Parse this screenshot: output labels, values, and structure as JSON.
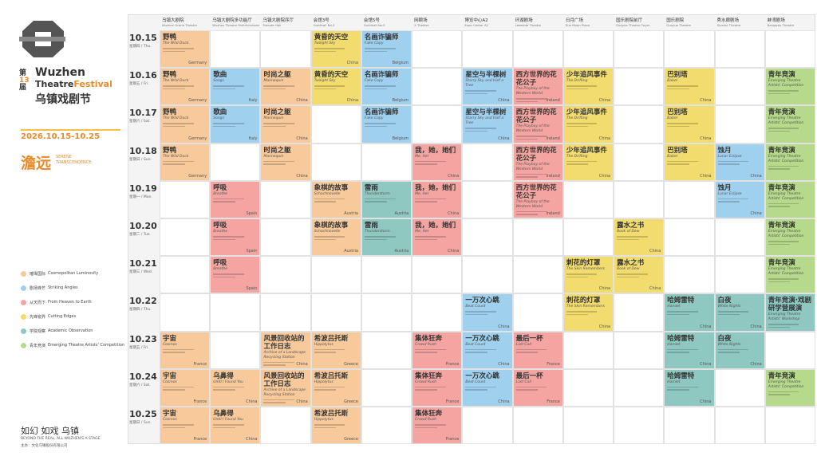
{
  "header": {
    "edition_prefix": "第",
    "edition": "13",
    "edition_suffix": "届",
    "name_en_1": "Wuzhen",
    "name_en_2": "Theatre",
    "name_en_3": "Festival",
    "name_zh": "乌镇戏剧节",
    "dates": "2026.10.15-10.25",
    "theme_zh": "澹远",
    "theme_en_1": "SERENE",
    "theme_en_2": "TRANSCENDENCE"
  },
  "legend": [
    {
      "name": "璀璨国际",
      "english": "Cosmopolitan Luminosity",
      "color": "#f7c99b"
    },
    {
      "name": "剧场锋芒",
      "english": "Striking Angles",
      "color": "#9fd0ee"
    },
    {
      "name": "从天而下",
      "english": "From Heaven to Earth",
      "color": "#f4a5a1"
    },
    {
      "name": "先锋锐界",
      "english": "Cutting Edges",
      "color": "#f2dc6e"
    },
    {
      "name": "学院观察",
      "english": "Academic Observation",
      "color": "#8fc8c1"
    },
    {
      "name": "青年竞演",
      "english": "Emerging Theatre Artists' Competition",
      "color": "#b6d98c"
    }
  ],
  "footer": {
    "slogan": "如幻 如戏 乌镇",
    "slogan_en": "BEYOND THE REAL, ALL WUZHEN'S A STAGE",
    "organizer": "主办：文化乌镇股份有限公司"
  },
  "venues": [
    {
      "name": "乌镇大剧院",
      "english": "Wuzhen Grand Theatre"
    },
    {
      "name": "乌镇大剧院多功能厅",
      "english": "Wuzhen Theatre Multifunctional Theatre"
    },
    {
      "name": "乌镇大剧院序厅",
      "english": "Prelude Hall"
    },
    {
      "name": "会馆3号",
      "english": "Guildhall No.3"
    },
    {
      "name": "会馆5号",
      "english": "Guildhall No.5"
    },
    {
      "name": "网颐场",
      "english": "X Theatre"
    },
    {
      "name": "博览中心A2",
      "english": "Expo Center A2"
    },
    {
      "name": "环湖剧场",
      "english": "Lakeside Theatre"
    },
    {
      "name": "日月广场",
      "english": "Sun Moon Plaza"
    },
    {
      "name": "国乐剧院前厅",
      "english": "Guoyue Theatre Foyer"
    },
    {
      "name": "国乐剧院",
      "english": "Guoyue Theatre"
    },
    {
      "name": "秀水廊剧场",
      "english": "Xiushui Theatre"
    },
    {
      "name": "蚌湾剧场",
      "english": "Bangwan Theatre"
    }
  ],
  "days": [
    {
      "date": "10.15",
      "weekday": "星期四 / Thu."
    },
    {
      "date": "10.16",
      "weekday": "星期五 / Fri."
    },
    {
      "date": "10.17",
      "weekday": "星期六 / Sat."
    },
    {
      "date": "10.18",
      "weekday": "星期日 / Sun."
    },
    {
      "date": "10.19",
      "weekday": "星期一 / Mon."
    },
    {
      "date": "10.20",
      "weekday": "星期二 / Tue."
    },
    {
      "date": "10.21",
      "weekday": "星期三 / Wed."
    },
    {
      "date": "10.22",
      "weekday": "星期四 / Thu."
    },
    {
      "date": "10.23",
      "weekday": "星期五 / Fri."
    },
    {
      "date": "10.24",
      "weekday": "星期六 / Sat."
    },
    {
      "date": "10.25",
      "weekday": "星期日 / Sun."
    }
  ],
  "events": [
    {
      "title": "野鸭",
      "english": "The Wild Duck",
      "country": "Germany",
      "program": 0,
      "venue": 0,
      "days": [
        0,
        1,
        2,
        3
      ]
    },
    {
      "title": "宇宙",
      "english": "Cosmos",
      "country": "France",
      "program": 0,
      "venue": 0,
      "days": [
        8,
        9,
        10
      ]
    },
    {
      "title": "歌曲",
      "english": "Songs",
      "country": "Italy",
      "program": 1,
      "venue": 1,
      "days": [
        1,
        2
      ]
    },
    {
      "title": "呼吸",
      "english": "Breathe",
      "country": "Spain",
      "program": 2,
      "venue": 1,
      "days": [
        4,
        5,
        6
      ]
    },
    {
      "title": "乌鼻得",
      "english": "Until I Found You",
      "country": "China",
      "program": 0,
      "venue": 1,
      "days": [
        9,
        10
      ]
    },
    {
      "title": "时尚之躯",
      "english": "Mannequin",
      "country": "China",
      "program": 0,
      "venue": 2,
      "days": [
        1,
        2,
        3
      ]
    },
    {
      "title": "风景回收站的工作日志",
      "english": "Archive of a Landscape Recycling Station",
      "country": "China",
      "program": 0,
      "venue": 2,
      "days": [
        8,
        9
      ]
    },
    {
      "title": "黄昏的天空",
      "english": "Twilight Sky",
      "country": "China",
      "program": 3,
      "venue": 3,
      "days": [
        0,
        1
      ]
    },
    {
      "title": "象棋的故事",
      "english": "Schachnovelle",
      "country": "Austria",
      "program": 0,
      "venue": 3,
      "days": [
        4,
        5
      ]
    },
    {
      "title": "希波吕托斯",
      "english": "Hippolytus",
      "country": "Greece",
      "program": 0,
      "venue": 3,
      "days": [
        8,
        9,
        10
      ]
    },
    {
      "title": "名画诈骗师",
      "english": "Fake Copy",
      "country": "Belgium",
      "program": 1,
      "venue": 4,
      "days": [
        0,
        1,
        2
      ]
    },
    {
      "title": "雷雨",
      "english": "Thunderstorm",
      "country": "Austria",
      "program": 4,
      "venue": 4,
      "days": [
        4,
        5
      ]
    },
    {
      "title": "我，她，她们",
      "english": "Me, Her",
      "country": "China",
      "program": 2,
      "venue": 5,
      "days": [
        3,
        4,
        5
      ]
    },
    {
      "title": "集体狂奔",
      "english": "Crowd Rush",
      "country": "France",
      "program": 2,
      "venue": 5,
      "days": [
        8,
        9,
        10
      ]
    },
    {
      "title": "星空与半棵树",
      "english": "Starry Sky and Half a Tree",
      "country": "China",
      "program": 1,
      "venue": 6,
      "days": [
        1,
        2
      ]
    },
    {
      "title": "一万次心跳",
      "english": "Beat Count",
      "country": "China",
      "program": 1,
      "venue": 6,
      "days": [
        7,
        8,
        9
      ]
    },
    {
      "title": "西方世界的花花公子",
      "english": "The Playboy of the Western World",
      "country": "Ireland",
      "program": 2,
      "venue": 7,
      "days": [
        1,
        2,
        3,
        4
      ]
    },
    {
      "title": "最后一杯",
      "english": "Last Call",
      "country": "France",
      "program": 2,
      "venue": 7,
      "days": [
        8,
        9
      ]
    },
    {
      "title": "少年追风事件",
      "english": "The Drifting",
      "country": "China",
      "program": 3,
      "venue": 8,
      "days": [
        1,
        2,
        3
      ]
    },
    {
      "title": "刺花的灯罩",
      "english": "The Skin Remembers",
      "country": "China",
      "program": 3,
      "venue": 8,
      "days": [
        6,
        7
      ]
    },
    {
      "title": "露水之书",
      "english": "Book of Dew",
      "country": "China",
      "program": 3,
      "venue": 9,
      "days": [
        5,
        6
      ]
    },
    {
      "title": "巴别塔",
      "english": "Babel",
      "country": "China",
      "program": 3,
      "venue": 10,
      "days": [
        1,
        2,
        3
      ]
    },
    {
      "title": "哈姆雷特",
      "english": "Hamlet",
      "country": "China",
      "program": 4,
      "venue": 10,
      "days": [
        7,
        8,
        9
      ]
    },
    {
      "title": "蚀月",
      "english": "Lunar Eclipse",
      "country": "China",
      "program": 1,
      "venue": 11,
      "days": [
        3,
        4
      ]
    },
    {
      "title": "白夜",
      "english": "White Nights",
      "country": "China",
      "program": 4,
      "venue": 11,
      "days": [
        7,
        8
      ]
    },
    {
      "title": "青年竞演",
      "english": "Emerging Theatre Artists' Competition",
      "country": "",
      "program": 5,
      "venue": 12,
      "days": [
        1,
        2,
        3,
        4,
        5,
        6,
        9
      ]
    },
    {
      "title": "青年竞演·戏剧研学营展演",
      "english": "Emerging Theatre Artists' Workshop",
      "country": "",
      "program": 4,
      "venue": 12,
      "days": [
        7
      ]
    }
  ]
}
